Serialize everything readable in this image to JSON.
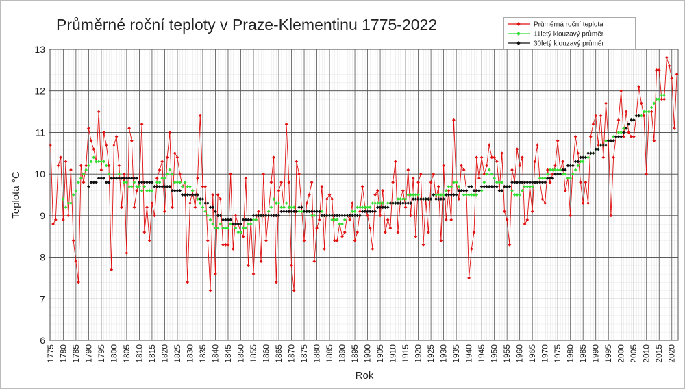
{
  "chart_data": {
    "type": "line",
    "title": "Průměrné roční teploty v Praze-Klementinu 1775-2022",
    "x_label": "Rok",
    "y_label": "Teplota °C",
    "xlim": [
      1774.5,
      2022.5
    ],
    "ylim": [
      6,
      13
    ],
    "xticks": [
      1775,
      1780,
      1785,
      1790,
      1795,
      1800,
      1805,
      1810,
      1815,
      1820,
      1825,
      1830,
      1835,
      1840,
      1845,
      1850,
      1855,
      1860,
      1865,
      1870,
      1875,
      1880,
      1885,
      1890,
      1895,
      1900,
      1905,
      1910,
      1915,
      1920,
      1925,
      1930,
      1935,
      1940,
      1945,
      1950,
      1955,
      1960,
      1965,
      1970,
      1975,
      1980,
      1985,
      1990,
      1995,
      2000,
      2005,
      2010,
      2015,
      2020
    ],
    "yticks": [
      6,
      7,
      8,
      9,
      10,
      11,
      12,
      13
    ],
    "grid": true,
    "legend": "upper right",
    "x": [
      1775,
      1776,
      1777,
      1778,
      1779,
      1780,
      1781,
      1782,
      1783,
      1784,
      1785,
      1786,
      1787,
      1788,
      1789,
      1790,
      1791,
      1792,
      1793,
      1794,
      1795,
      1796,
      1797,
      1798,
      1799,
      1800,
      1801,
      1802,
      1803,
      1804,
      1805,
      1806,
      1807,
      1808,
      1809,
      1810,
      1811,
      1812,
      1813,
      1814,
      1815,
      1816,
      1817,
      1818,
      1819,
      1820,
      1821,
      1822,
      1823,
      1824,
      1825,
      1826,
      1827,
      1828,
      1829,
      1830,
      1831,
      1832,
      1833,
      1834,
      1835,
      1836,
      1837,
      1838,
      1839,
      1840,
      1841,
      1842,
      1843,
      1844,
      1845,
      1846,
      1847,
      1848,
      1849,
      1850,
      1851,
      1852,
      1853,
      1854,
      1855,
      1856,
      1857,
      1858,
      1859,
      1860,
      1861,
      1862,
      1863,
      1864,
      1865,
      1866,
      1867,
      1868,
      1869,
      1870,
      1871,
      1872,
      1873,
      1874,
      1875,
      1876,
      1877,
      1878,
      1879,
      1880,
      1881,
      1882,
      1883,
      1884,
      1885,
      1886,
      1887,
      1888,
      1889,
      1890,
      1891,
      1892,
      1893,
      1894,
      1895,
      1896,
      1897,
      1898,
      1899,
      1900,
      1901,
      1902,
      1903,
      1904,
      1905,
      1906,
      1907,
      1908,
      1909,
      1910,
      1911,
      1912,
      1913,
      1914,
      1915,
      1916,
      1917,
      1918,
      1919,
      1920,
      1921,
      1922,
      1923,
      1924,
      1925,
      1926,
      1927,
      1928,
      1929,
      1930,
      1931,
      1932,
      1933,
      1934,
      1935,
      1936,
      1937,
      1938,
      1939,
      1940,
      1941,
      1942,
      1943,
      1944,
      1945,
      1946,
      1947,
      1948,
      1949,
      1950,
      1951,
      1952,
      1953,
      1954,
      1955,
      1956,
      1957,
      1958,
      1959,
      1960,
      1961,
      1962,
      1963,
      1964,
      1965,
      1966,
      1967,
      1968,
      1969,
      1970,
      1971,
      1972,
      1973,
      1974,
      1975,
      1976,
      1977,
      1978,
      1979,
      1980,
      1981,
      1982,
      1983,
      1984,
      1985,
      1986,
      1987,
      1988,
      1989,
      1990,
      1991,
      1992,
      1993,
      1994,
      1995,
      1996,
      1997,
      1998,
      1999,
      2000,
      2001,
      2002,
      2003,
      2004,
      2005,
      2006,
      2007,
      2008,
      2009,
      2010,
      2011,
      2012,
      2013,
      2014,
      2015,
      2016,
      2017,
      2018,
      2019,
      2020,
      2021,
      2022
    ],
    "series": [
      {
        "name": "Průměrná roční teplota",
        "color": "#e01010",
        "line": true,
        "values": [
          10.7,
          8.8,
          8.9,
          10.2,
          10.4,
          8.9,
          10.3,
          9.0,
          10.1,
          8.4,
          7.9,
          7.4,
          10.2,
          9.8,
          10.2,
          11.1,
          10.8,
          10.6,
          10.3,
          11.5,
          10.1,
          11.0,
          10.7,
          10.2,
          7.7,
          10.7,
          10.9,
          10.2,
          9.2,
          10.0,
          8.1,
          11.1,
          10.8,
          9.2,
          9.6,
          9.8,
          11.2,
          8.6,
          9.2,
          8.4,
          9.3,
          9.0,
          9.9,
          10.1,
          10.3,
          9.1,
          10.4,
          11.0,
          9.2,
          10.5,
          10.4,
          10.0,
          9.7,
          9.8,
          7.4,
          9.3,
          9.6,
          9.2,
          9.9,
          11.4,
          9.7,
          9.7,
          8.4,
          7.2,
          9.5,
          7.6,
          9.5,
          9.4,
          8.3,
          8.3,
          8.3,
          10.0,
          8.2,
          9.0,
          8.8,
          8.6,
          8.5,
          9.9,
          7.8,
          8.9,
          7.6,
          8.9,
          9.1,
          7.9,
          10.0,
          8.4,
          9.1,
          9.8,
          10.4,
          7.4,
          9.6,
          9.8,
          9.2,
          11.2,
          9.8,
          7.8,
          7.2,
          10.3,
          10.0,
          9.2,
          8.4,
          9.3,
          9.5,
          9.8,
          7.9,
          8.7,
          8.9,
          9.7,
          8.2,
          9.4,
          9.5,
          9.4,
          8.4,
          8.4,
          8.8,
          8.5,
          8.6,
          9.0,
          8.9,
          9.3,
          8.4,
          8.6,
          9.1,
          9.7,
          9.2,
          9.0,
          8.7,
          8.2,
          9.5,
          9.6,
          9.0,
          9.6,
          8.6,
          8.9,
          8.7,
          9.8,
          10.3,
          8.6,
          9.4,
          9.6,
          9.2,
          10.1,
          9.0,
          9.9,
          8.5,
          9.8,
          10.0,
          8.3,
          9.4,
          8.6,
          9.8,
          10.0,
          9.4,
          9.7,
          8.4,
          10.2,
          8.9,
          9.6,
          8.9,
          11.3,
          9.8,
          9.4,
          10.2,
          10.1,
          9.6,
          7.5,
          8.2,
          8.6,
          10.4,
          9.9,
          10.4,
          10.0,
          10.2,
          10.7,
          10.4,
          10.4,
          10.3,
          9.6,
          10.5,
          9.1,
          8.9,
          8.3,
          10.1,
          9.8,
          10.6,
          10.2,
          10.4,
          8.8,
          8.9,
          9.7,
          9.1,
          10.3,
          10.7,
          9.8,
          9.4,
          9.3,
          10.1,
          9.8,
          10.0,
          10.2,
          10.8,
          10.1,
          10.3,
          9.6,
          9.9,
          9.0,
          10.2,
          10.9,
          10.5,
          9.8,
          9.3,
          9.8,
          9.3,
          10.9,
          11.2,
          11.4,
          10.7,
          11.4,
          10.4,
          11.7,
          10.8,
          9.0,
          10.4,
          10.9,
          11.3,
          12.0,
          10.9,
          11.5,
          11.0,
          10.9,
          10.9,
          11.4,
          12.1,
          11.7,
          11.4,
          10.0,
          11.5,
          11.5,
          10.8,
          12.5,
          12.5,
          11.8,
          11.8,
          12.8,
          12.6,
          12.3,
          11.1,
          12.4
        ]
      },
      {
        "name": "11letý klouzavý průměr",
        "color": "#33dd33",
        "line": false,
        "values": [
          null,
          null,
          null,
          null,
          null,
          9.4,
          9.2,
          9.3,
          9.3,
          9.5,
          9.6,
          9.8,
          9.9,
          10.0,
          10.1,
          10.2,
          10.3,
          10.4,
          10.3,
          10.3,
          10.3,
          10.3,
          10.2,
          10.0,
          9.9,
          9.9,
          9.9,
          10.0,
          9.9,
          9.8,
          9.8,
          9.7,
          9.7,
          9.8,
          9.7,
          9.7,
          9.6,
          9.7,
          9.6,
          9.6,
          9.6,
          9.7,
          9.8,
          9.8,
          9.9,
          9.9,
          10.0,
          10.1,
          10.0,
          9.8,
          9.8,
          9.8,
          9.7,
          9.8,
          9.7,
          9.7,
          9.6,
          9.5,
          9.4,
          9.3,
          9.2,
          9.1,
          9.0,
          8.9,
          8.8,
          8.7,
          8.7,
          8.8,
          8.7,
          8.7,
          8.7,
          8.8,
          8.8,
          8.7,
          8.6,
          8.6,
          8.7,
          8.7,
          8.8,
          8.8,
          8.9,
          8.9,
          9.0,
          9.0,
          9.0,
          9.0,
          9.1,
          9.2,
          9.4,
          9.3,
          9.3,
          9.2,
          9.2,
          9.3,
          9.2,
          9.2,
          9.2,
          9.1,
          9.1,
          9.1,
          9.1,
          9.1,
          9.1,
          9.0,
          9.0,
          9.1,
          9.1,
          9.1,
          9.0,
          9.0,
          9.0,
          8.9,
          8.9,
          8.9,
          8.8,
          8.8,
          8.9,
          9.0,
          9.0,
          9.1,
          9.1,
          9.2,
          9.2,
          9.2,
          9.2,
          9.2,
          9.2,
          9.3,
          9.3,
          9.3,
          9.3,
          9.3,
          9.2,
          9.3,
          9.3,
          9.3,
          9.3,
          9.4,
          9.4,
          9.4,
          9.4,
          9.5,
          9.5,
          9.5,
          9.5,
          9.5,
          9.4,
          9.4,
          9.4,
          9.4,
          9.4,
          9.5,
          9.5,
          9.5,
          9.5,
          9.5,
          9.6,
          9.7,
          9.7,
          9.8,
          9.8,
          9.7,
          9.6,
          9.5,
          9.5,
          9.5,
          9.5,
          9.5,
          9.5,
          9.6,
          9.6,
          9.8,
          10.0,
          10.1,
          10.0,
          9.9,
          9.8,
          9.8,
          9.8,
          9.7,
          9.7,
          9.7,
          9.6,
          9.5,
          9.5,
          9.5,
          9.6,
          9.7,
          9.7,
          9.7,
          9.7,
          9.8,
          9.8,
          9.9,
          9.9,
          9.9,
          10.0,
          10.1,
          10.1,
          10.1,
          10.1,
          10.1,
          10.0,
          10.0,
          9.9,
          9.9,
          10.0,
          10.1,
          10.2,
          10.3,
          10.3,
          10.4,
          10.4,
          10.5,
          10.5,
          10.6,
          10.6,
          10.7,
          10.7,
          10.8,
          10.8,
          10.8,
          10.9,
          10.9,
          11.0,
          11.0,
          11.1,
          11.1,
          11.2,
          11.3,
          11.3,
          11.4,
          11.4,
          11.4,
          11.5,
          11.5,
          11.5,
          11.6,
          11.7,
          11.8,
          11.8,
          11.9,
          11.9,
          null,
          null,
          null,
          null,
          null
        ]
      },
      {
        "name": "30letý klouzavý průměr",
        "color": "#111111",
        "line": false,
        "values": [
          null,
          null,
          null,
          null,
          null,
          null,
          null,
          null,
          null,
          null,
          null,
          null,
          null,
          null,
          null,
          9.7,
          9.8,
          9.8,
          9.8,
          9.9,
          9.9,
          9.9,
          9.8,
          9.8,
          9.9,
          9.9,
          9.9,
          9.9,
          9.9,
          9.9,
          9.9,
          9.9,
          9.9,
          9.9,
          9.9,
          9.8,
          9.8,
          9.8,
          9.8,
          9.8,
          9.8,
          9.7,
          9.7,
          9.7,
          9.7,
          9.7,
          9.7,
          9.7,
          9.6,
          9.6,
          9.6,
          9.6,
          9.5,
          9.5,
          9.5,
          9.5,
          9.5,
          9.5,
          9.5,
          9.4,
          9.4,
          9.3,
          9.3,
          9.2,
          9.2,
          9.1,
          9.0,
          9.0,
          8.9,
          8.9,
          8.9,
          8.9,
          8.8,
          8.8,
          8.8,
          8.8,
          8.9,
          8.9,
          8.9,
          8.9,
          9.0,
          9.0,
          9.0,
          9.0,
          9.0,
          9.0,
          9.0,
          9.0,
          9.0,
          9.0,
          9.0,
          9.1,
          9.1,
          9.1,
          9.1,
          9.1,
          9.1,
          9.1,
          9.2,
          9.2,
          9.1,
          9.1,
          9.1,
          9.1,
          9.1,
          9.1,
          9.1,
          9.0,
          9.0,
          9.0,
          9.0,
          9.0,
          9.0,
          9.0,
          9.0,
          9.0,
          9.0,
          9.0,
          9.0,
          9.0,
          9.0,
          9.0,
          9.0,
          9.1,
          9.1,
          9.1,
          9.1,
          9.1,
          9.1,
          9.2,
          9.2,
          9.2,
          9.2,
          9.2,
          9.3,
          9.3,
          9.3,
          9.3,
          9.3,
          9.3,
          9.3,
          9.3,
          9.3,
          9.4,
          9.4,
          9.4,
          9.4,
          9.4,
          9.4,
          9.4,
          9.4,
          9.5,
          9.4,
          9.4,
          9.4,
          9.4,
          9.5,
          9.5,
          9.5,
          9.5,
          9.5,
          9.6,
          9.6,
          9.6,
          9.6,
          9.7,
          9.7,
          9.6,
          9.6,
          9.6,
          9.7,
          9.7,
          9.7,
          9.7,
          9.7,
          9.7,
          9.7,
          9.6,
          9.6,
          9.7,
          9.7,
          9.7,
          9.8,
          9.8,
          9.8,
          9.8,
          9.8,
          9.8,
          9.8,
          9.8,
          9.8,
          9.8,
          9.8,
          9.8,
          9.8,
          9.8,
          9.9,
          9.9,
          9.9,
          10.0,
          10.0,
          10.0,
          10.1,
          10.1,
          10.2,
          10.2,
          10.2,
          10.3,
          10.3,
          10.4,
          10.4,
          10.4,
          10.5,
          10.5,
          10.5,
          10.6,
          10.6,
          10.7,
          10.7,
          10.7,
          10.8,
          10.8,
          10.8,
          10.9,
          10.9,
          10.9,
          11.0,
          11.1,
          11.2,
          11.3,
          11.3,
          11.4,
          11.4,
          null,
          null,
          null,
          null,
          null,
          null,
          null,
          null,
          null,
          null,
          null,
          null,
          null,
          null,
          null
        ]
      }
    ]
  }
}
